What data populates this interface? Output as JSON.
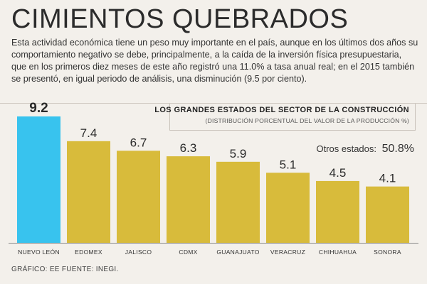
{
  "header": {
    "title": "CIMIENTOS QUEBRADOS",
    "intro": "Esta actividad económica tiene un peso muy importante en el país, aunque en los últimos dos años su comportamiento negativo se debe, principalmente, a la caída de la inversión física presupuestaria, que en los primeros diez meses de este año registró una 11.0% a tasa anual real; en el 2015 también se presentó, en igual periodo de análisis, una disminución (9.5 por ciento)."
  },
  "chart_data": {
    "type": "bar",
    "title": "LOS GRANDES ESTADOS DEL SECTOR DE LA CONSTRUCCIÓN",
    "subtitle": "(DISTRIBUCIÓN PORCENTUAL DEL VALOR DE LA PRODUCCIÓN %)",
    "categories": [
      "NUEVO LEÓN",
      "EDOMEX",
      "JALISCO",
      "CDMX",
      "GUANAJUATO",
      "VERACRUZ",
      "CHIHUAHUA",
      "SONORA"
    ],
    "values": [
      9.2,
      7.4,
      6.7,
      6.3,
      5.9,
      5.1,
      4.5,
      4.1
    ],
    "labels": [
      "9.2",
      "7.4",
      "6.7",
      "6.3",
      "5.9",
      "5.1",
      "4.5",
      "4.1"
    ],
    "highlight_index": 0,
    "ylim": [
      0,
      9.2
    ],
    "xlabel": "",
    "ylabel": "",
    "others_label": "Otros estados:",
    "others_value": "50.8%"
  },
  "colors": {
    "highlight": "#38c3ee",
    "bar": "#d8bb3b",
    "text": "#2a2a2a"
  },
  "footer": {
    "credit": "GRÁFICO: EE  FUENTE: INEGI."
  }
}
